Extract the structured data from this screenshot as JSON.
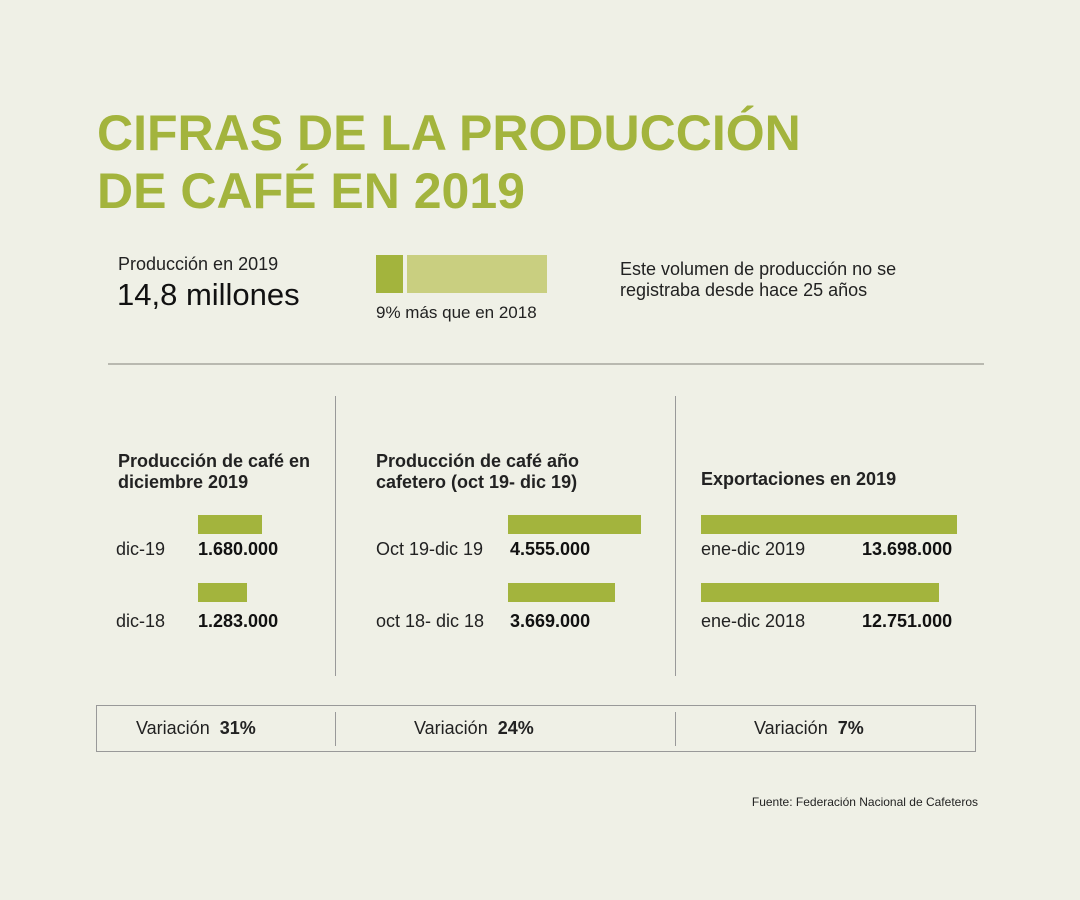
{
  "title_line1": "CIFRAS DE LA PRODUCCIÓN",
  "title_line2": "DE CAFÉ EN 2019",
  "summary": {
    "label": "Producción en 2019",
    "value": "14,8 millones",
    "bar_caption": "9% más que en 2018",
    "note": "Este volumen de producción no se registraba desde hace 25 años"
  },
  "colors": {
    "accent": "#a3b43d",
    "accent_light": "#c9cf80",
    "background": "#eff0e6"
  },
  "chart_data": [
    {
      "type": "bar",
      "title": "Producción de café en diciembre 2019",
      "categories": [
        "dic-19",
        "dic-18"
      ],
      "values": [
        1680000,
        1283000
      ],
      "labels": [
        "1.680.000",
        "1.283.000"
      ],
      "variation_label": "Variación",
      "variation": "31%"
    },
    {
      "type": "bar",
      "title": "Producción de café año cafetero (oct 19- dic 19)",
      "categories": [
        "Oct 19-dic 19",
        "oct 18- dic 18"
      ],
      "values": [
        4555000,
        3669000
      ],
      "labels": [
        "4.555.000",
        "3.669.000"
      ],
      "variation_label": "Variación",
      "variation": "24%"
    },
    {
      "type": "bar",
      "title": "Exportaciones en 2019",
      "categories": [
        "ene-dic 2019",
        "ene-dic 2018"
      ],
      "values": [
        13698000,
        12751000
      ],
      "labels": [
        "13.698.000",
        "12.751.000"
      ],
      "variation_label": "Variación",
      "variation": "7%"
    }
  ],
  "source": "Fuente: Federación Nacional de Cafeteros"
}
